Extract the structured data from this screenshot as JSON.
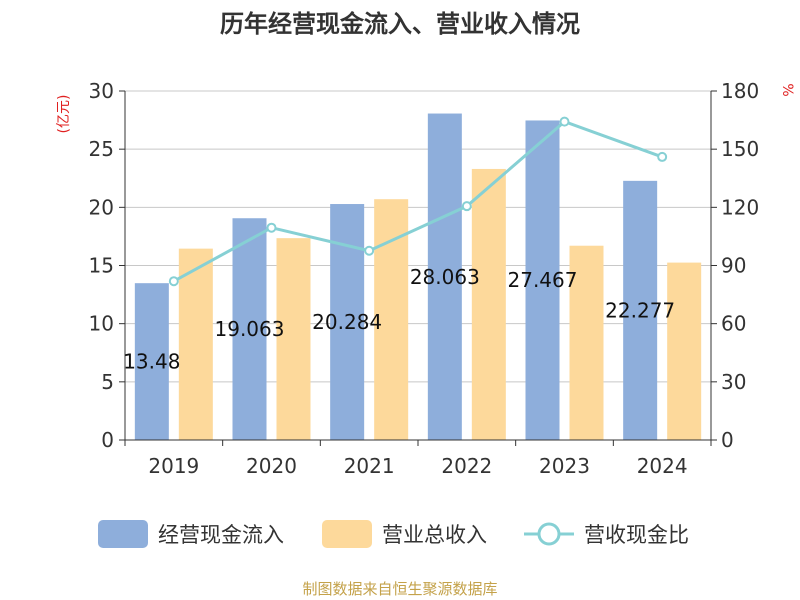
{
  "chart_data": {
    "type": "bar",
    "title": "历年经营现金流入、营业收入情况",
    "categories": [
      "2019",
      "2020",
      "2021",
      "2022",
      "2023",
      "2024"
    ],
    "series": [
      {
        "name": "经营现金流入",
        "kind": "bar",
        "axis": "left",
        "color": "#8eaedb",
        "values": [
          13.48,
          19.063,
          20.284,
          28.063,
          27.467,
          22.277
        ],
        "labels": [
          "13.48",
          "19.063",
          "20.284",
          "28.063",
          "27.467",
          "22.277"
        ]
      },
      {
        "name": "营业总收入",
        "kind": "bar",
        "axis": "left",
        "color": "#fdd99b",
        "values": [
          16.45,
          17.35,
          20.7,
          23.3,
          16.7,
          15.25
        ]
      },
      {
        "name": "营收现金比",
        "kind": "line",
        "axis": "right",
        "color": "#86d0d4",
        "values": [
          81.9,
          109.5,
          97.6,
          120.6,
          164.2,
          146.0
        ]
      }
    ],
    "y_left": {
      "unit": "(亿元)",
      "ylim": [
        0,
        30
      ],
      "ticks": [
        0,
        5,
        10,
        15,
        20,
        25,
        30
      ]
    },
    "y_right": {
      "unit": "%",
      "ylim": [
        0,
        180
      ],
      "ticks": [
        0,
        30,
        60,
        90,
        120,
        150,
        180
      ]
    },
    "grid": true,
    "legend_position": "bottom"
  },
  "colors": {
    "unit": "#e02020",
    "source": "#c4a24a",
    "axis": "#333333",
    "grid": "#c8c8c8"
  },
  "source_text": "制图数据来自恒生聚源数据库"
}
